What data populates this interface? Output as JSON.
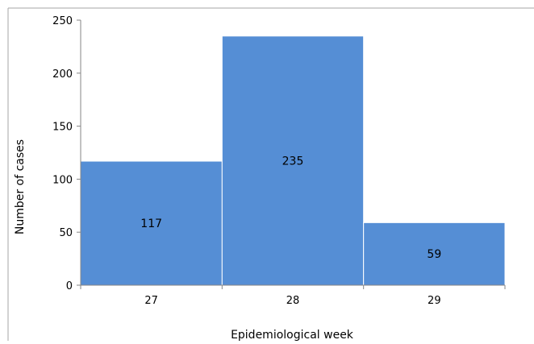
{
  "chart_data": {
    "type": "bar",
    "categories": [
      "27",
      "28",
      "29"
    ],
    "values": [
      117,
      235,
      59
    ],
    "data_labels": [
      "117",
      "235",
      "59"
    ],
    "xlabel": "Epidemiological week",
    "ylabel": "Number of cases",
    "ylim": [
      0,
      250
    ],
    "yticks": [
      "0",
      "50",
      "100",
      "150",
      "200",
      "250"
    ],
    "grid": false,
    "legend": "none",
    "bar_color": "#558ed5",
    "bar_edge_color": "#ffffff"
  }
}
